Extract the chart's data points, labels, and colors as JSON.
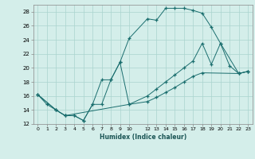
{
  "xlabel": "Humidex (Indice chaleur)",
  "bg_color": "#d4eeea",
  "grid_color": "#aad4ce",
  "line_color": "#1a6e6e",
  "xlim": [
    -0.5,
    23.5
  ],
  "ylim": [
    12,
    29
  ],
  "xticks": [
    0,
    1,
    2,
    3,
    4,
    5,
    6,
    7,
    8,
    9,
    10,
    12,
    13,
    14,
    15,
    16,
    17,
    18,
    19,
    20,
    21,
    22,
    23
  ],
  "yticks": [
    12,
    14,
    16,
    18,
    20,
    22,
    24,
    26,
    28
  ],
  "line1_x": [
    0,
    1,
    2,
    3,
    4,
    5,
    6,
    7,
    8,
    9,
    10,
    12,
    13,
    14,
    15,
    16,
    17,
    18,
    19,
    20,
    21,
    22,
    23
  ],
  "line1_y": [
    16.2,
    14.8,
    14.0,
    13.2,
    13.2,
    12.5,
    14.8,
    18.3,
    18.3,
    20.8,
    24.2,
    27.0,
    26.8,
    28.5,
    28.5,
    28.5,
    28.2,
    27.8,
    25.8,
    23.5,
    20.3,
    19.2,
    19.5
  ],
  "line2_x": [
    0,
    2,
    3,
    4,
    5,
    6,
    7,
    8,
    9,
    10,
    12,
    13,
    14,
    15,
    16,
    17,
    18,
    19,
    20,
    22,
    23
  ],
  "line2_y": [
    16.2,
    14.0,
    13.2,
    13.2,
    12.5,
    14.8,
    14.8,
    18.3,
    20.8,
    14.8,
    16.0,
    17.0,
    18.0,
    19.0,
    20.0,
    21.0,
    23.5,
    20.5,
    23.5,
    19.2,
    19.5
  ],
  "line3_x": [
    0,
    2,
    3,
    10,
    12,
    13,
    14,
    15,
    16,
    17,
    18,
    22,
    23
  ],
  "line3_y": [
    16.2,
    14.0,
    13.2,
    14.8,
    15.2,
    15.8,
    16.5,
    17.2,
    18.0,
    18.8,
    19.3,
    19.2,
    19.5
  ]
}
